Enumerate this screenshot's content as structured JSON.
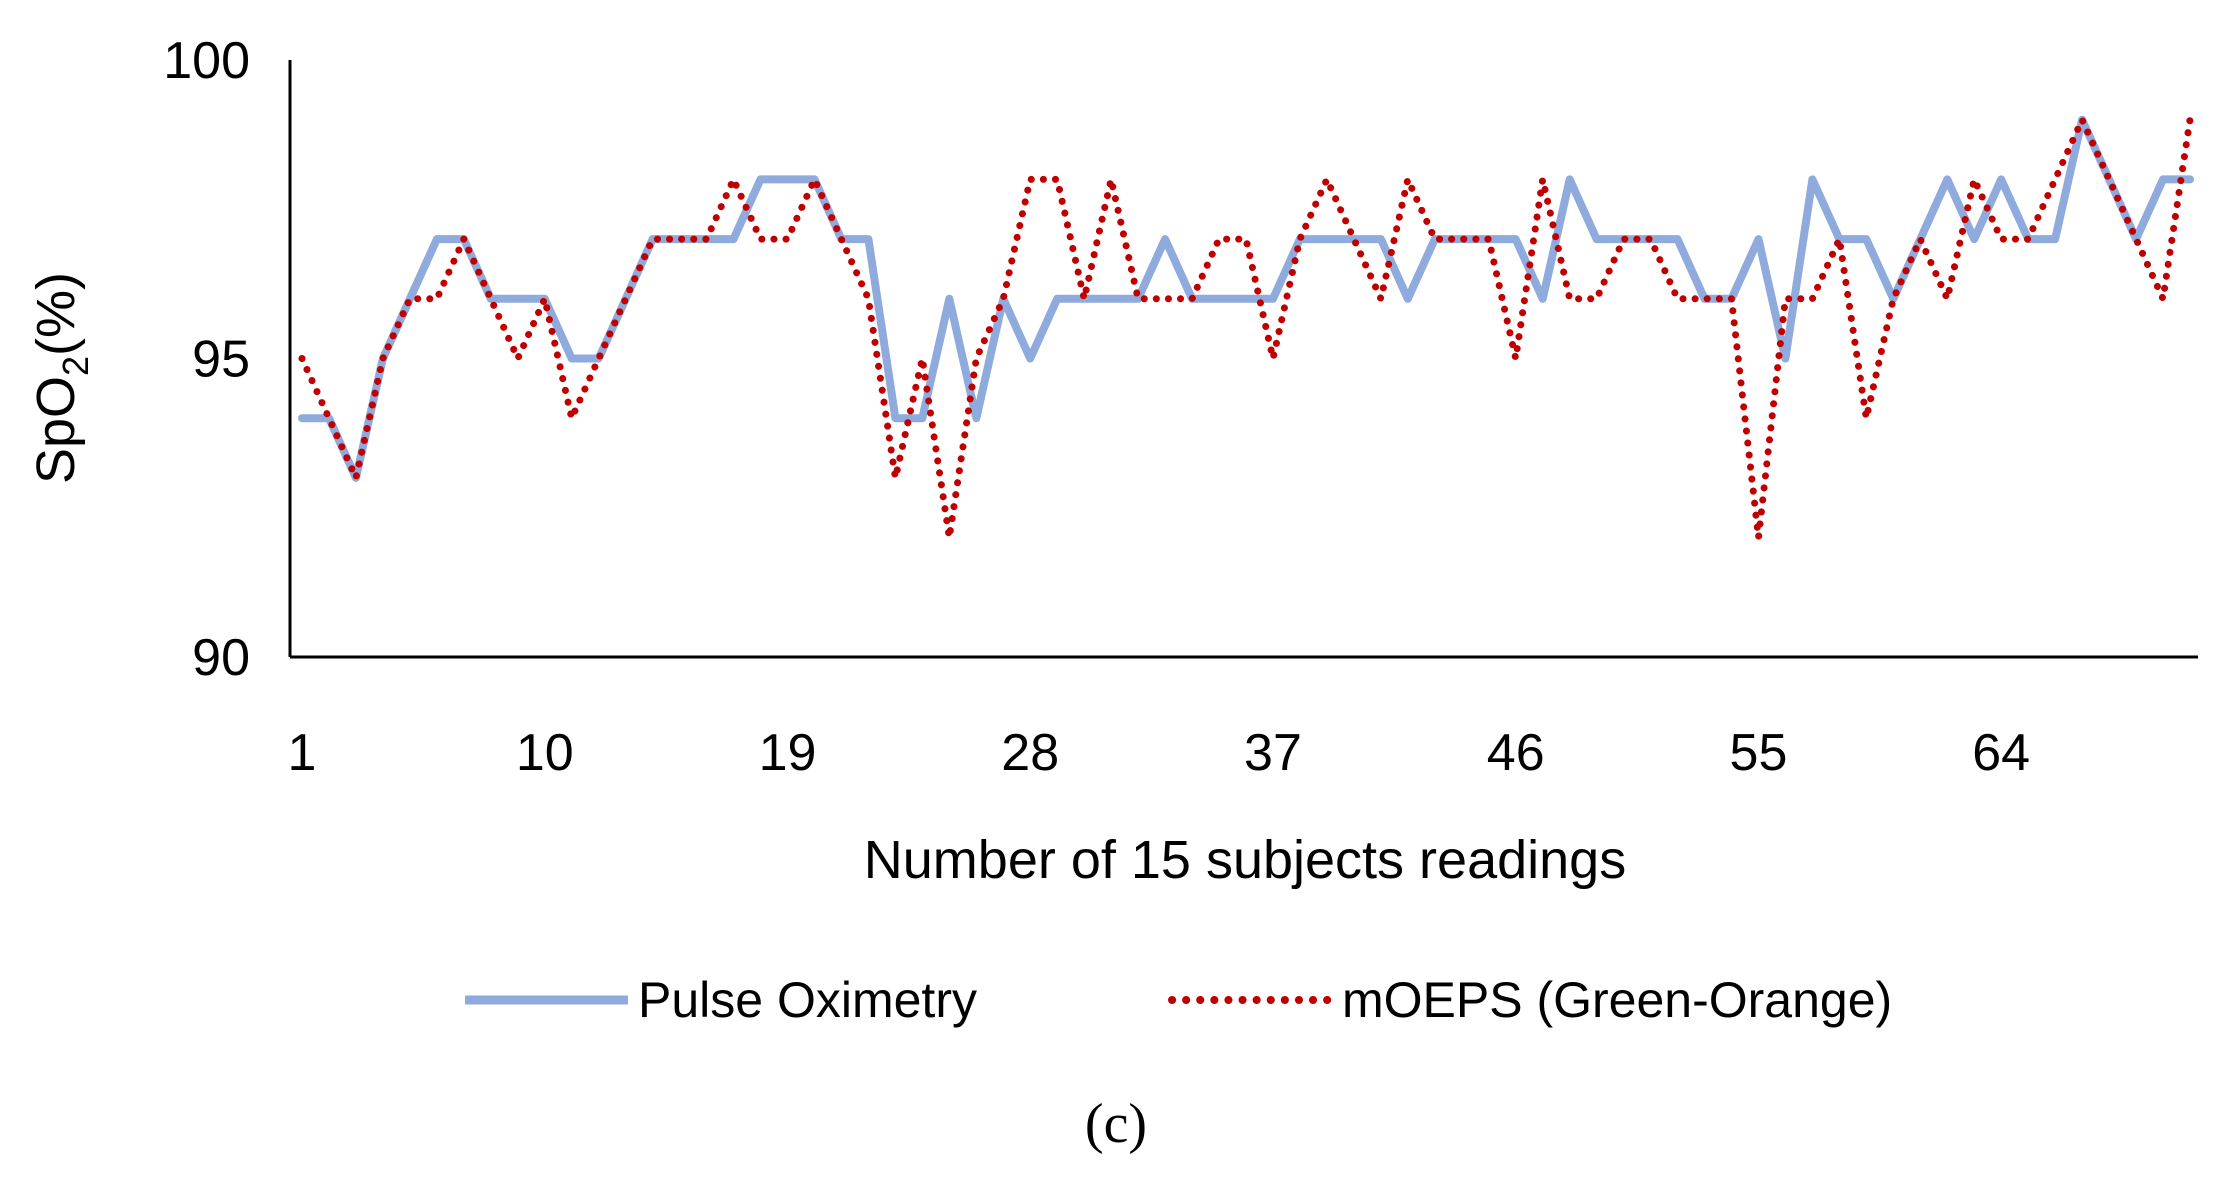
{
  "chart_data": {
    "type": "line",
    "xlabel": "Number of 15 subjects readings",
    "ylabel": "SpO",
    "ylabel_subscript": "2",
    "ylabel_suffix": "(%)",
    "caption": "(c)",
    "ylim": [
      90,
      100
    ],
    "yticks": [
      90,
      95,
      100
    ],
    "xticks": [
      "1",
      "10",
      "19",
      "28",
      "37",
      "46",
      "55",
      "64"
    ],
    "x": [
      1,
      2,
      3,
      4,
      5,
      6,
      7,
      8,
      9,
      10,
      11,
      12,
      13,
      14,
      15,
      16,
      17,
      18,
      19,
      20,
      21,
      22,
      23,
      24,
      25,
      26,
      27,
      28,
      29,
      30,
      31,
      32,
      33,
      34,
      35,
      36,
      37,
      38,
      39,
      40,
      41,
      42,
      43,
      44,
      45,
      46,
      47,
      48,
      49,
      50,
      51,
      52,
      53,
      54,
      55,
      56,
      57,
      58,
      59,
      60,
      61,
      62,
      63,
      64,
      65,
      66,
      67,
      68,
      69,
      70,
      71
    ],
    "series": [
      {
        "name": "Pulse Oximetry",
        "color": "#8faadc",
        "style": "solid",
        "values": [
          94,
          94,
          93,
          95,
          96,
          97,
          97,
          96,
          96,
          96,
          95,
          95,
          96,
          97,
          97,
          97,
          97,
          98,
          98,
          98,
          97,
          97,
          94,
          94,
          96,
          94,
          96,
          95,
          96,
          96,
          96,
          96,
          97,
          96,
          96,
          96,
          96,
          97,
          97,
          97,
          97,
          96,
          97,
          97,
          97,
          97,
          96,
          98,
          97,
          97,
          97,
          97,
          96,
          96,
          97,
          95,
          98,
          97,
          97,
          96,
          97,
          98,
          97,
          98,
          97,
          97,
          99,
          98,
          97,
          98,
          98
        ]
      },
      {
        "name": "mOEPS (Green-Orange)",
        "color": "#c00000",
        "style": "dotted",
        "values": [
          95,
          94,
          93,
          95,
          96,
          96,
          97,
          96,
          95,
          96,
          94,
          95,
          96,
          97,
          97,
          97,
          98,
          97,
          97,
          98,
          97,
          96,
          93,
          95,
          92,
          95,
          96,
          98,
          98,
          96,
          98,
          96,
          96,
          96,
          97,
          97,
          95,
          97,
          98,
          97,
          96,
          98,
          97,
          97,
          97,
          95,
          98,
          96,
          96,
          97,
          97,
          96,
          96,
          96,
          92,
          96,
          96,
          97,
          94,
          96,
          97,
          96,
          98,
          97,
          97,
          98,
          99,
          98,
          97,
          96,
          99
        ]
      }
    ],
    "legend_position": "bottom",
    "grid": false
  }
}
